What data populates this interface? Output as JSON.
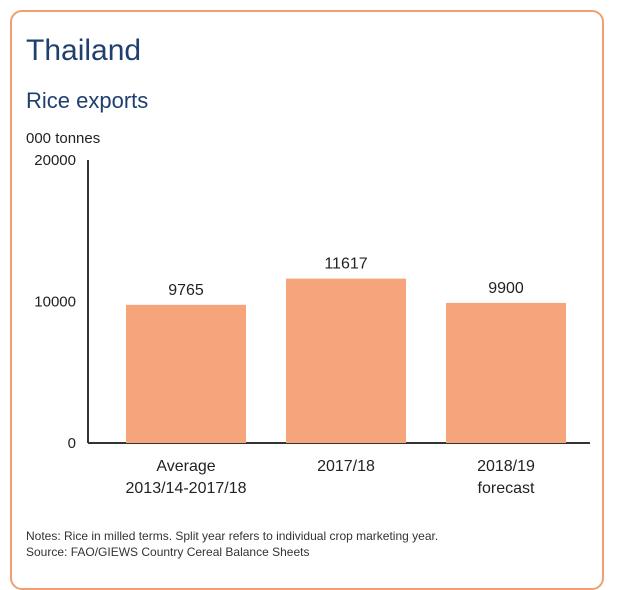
{
  "header": {
    "title": "Thailand",
    "subtitle": "Rice exports",
    "unit": "000 tonnes"
  },
  "chart_data": {
    "type": "bar",
    "title": "Thailand",
    "subtitle": "Rice exports",
    "ylabel": "000 tonnes",
    "ylim": [
      0,
      20000
    ],
    "yticks": [
      "0",
      "10000",
      "20000"
    ],
    "categories": [
      [
        "Average",
        "2013/14-2017/18"
      ],
      [
        "2017/18"
      ],
      [
        "2018/19",
        "forecast"
      ]
    ],
    "values": [
      9765,
      11617,
      9900
    ],
    "data_labels": [
      "9765",
      "11617",
      "9900"
    ],
    "bar_color": "#f5a47c",
    "grid": false,
    "legend": "none"
  },
  "notes": {
    "line1": "Notes: Rice in milled terms. Split year refers to individual crop marketing year.",
    "line2": "Source: FAO/GIEWS Country Cereal Balance Sheets"
  },
  "colors": {
    "border": "#f0a070",
    "title": "#1f3f6e",
    "bar": "#f5a47c"
  }
}
